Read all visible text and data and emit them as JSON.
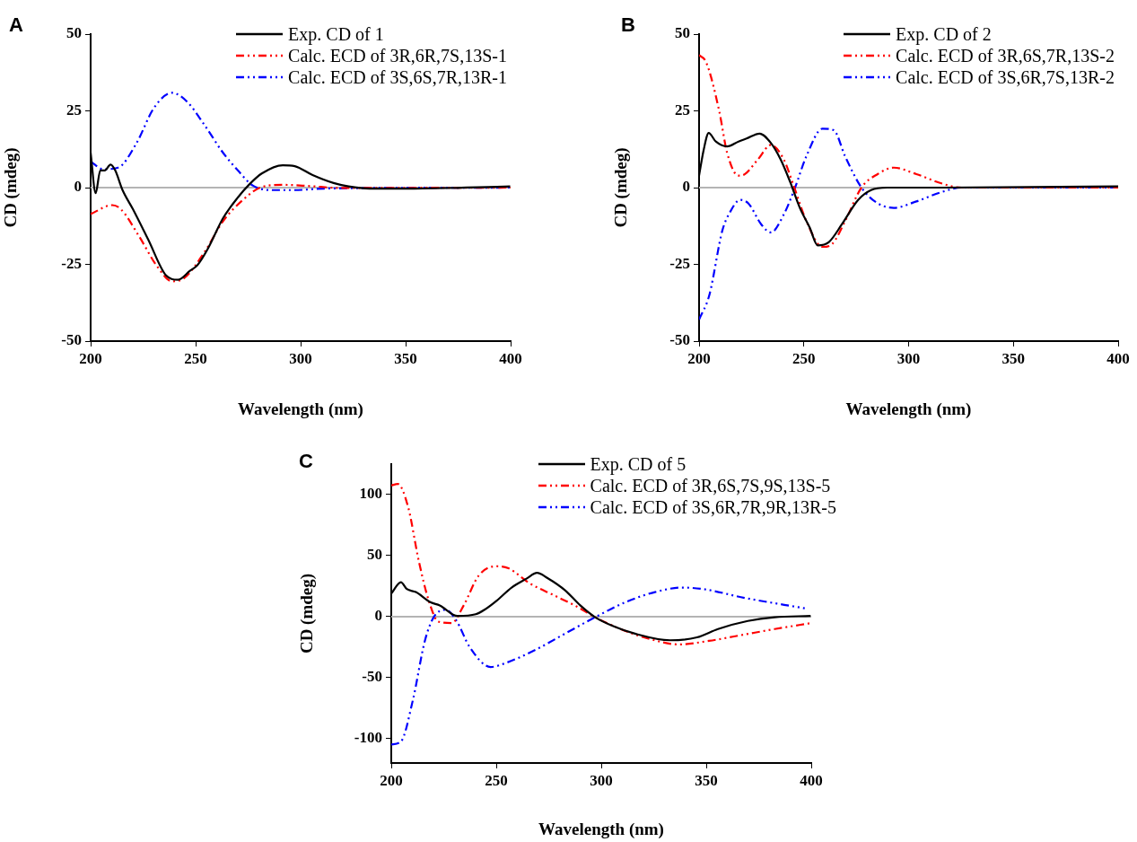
{
  "chart_data": [
    {
      "type": "line",
      "xlabel": "Wavelength (nm)",
      "ylabel": "CD (mdeg)",
      "annotations": [
        "A"
      ],
      "xlim": [
        200,
        400
      ],
      "xticks": [
        200,
        250,
        300,
        350,
        400
      ],
      "ylim": [
        -50,
        50
      ],
      "yticks": [
        -50,
        -25,
        0,
        25,
        50
      ],
      "legend": "top right",
      "ref_lines": [
        {
          "axis": "y",
          "value": 0,
          "color": "#b4b4b4"
        }
      ],
      "series": [
        {
          "name": "Exp. CD of 1",
          "color": "#000000",
          "line_style": "solid",
          "x": [
            200,
            202.4,
            204.6,
            206.7,
            209.5,
            211.7,
            215.2,
            220.2,
            227.4,
            235.9,
            241.6,
            247.3,
            250.9,
            255.9,
            263,
            270.1,
            275.8,
            281.5,
            291.5,
            297.2,
            305.7,
            315.7,
            322.8,
            332.8,
            354.2,
            399.8
          ],
          "values": [
            11.4,
            -1.8,
            5.6,
            5.6,
            7.5,
            5.6,
            -0.8,
            -7.1,
            -16.9,
            -28.6,
            -30,
            -27.1,
            -25.2,
            -19.8,
            -10,
            -3.2,
            1.2,
            4.6,
            7.3,
            7,
            4.1,
            1.5,
            0.4,
            -0.3,
            -0.3,
            0.4
          ]
        },
        {
          "name": "Calc. ECD of 3R,6R,7S,13S-1",
          "color": "#ff0000",
          "line_style": "dashed",
          "x": [
            200,
            210.3,
            214.5,
            223.1,
            231.6,
            238.8,
            244.5,
            254.4,
            263,
            273,
            281.5,
            291.5,
            304.3,
            318.6,
            400
          ],
          "values": [
            -8.6,
            -5.7,
            -7.1,
            -15.9,
            -25.6,
            -30.5,
            -29.5,
            -20.8,
            -11,
            -3.7,
            0.2,
            0.9,
            0.5,
            -0.1,
            0
          ]
        },
        {
          "name": "Calc. ECD of 3S,6S,7R,13R-1",
          "color": "#0000ff",
          "line_style": "dashed",
          "x": [
            200,
            206,
            213.1,
            221.7,
            230.2,
            238.8,
            245.9,
            254.4,
            263,
            270.1,
            277.2,
            285.8,
            297.2,
            311.4,
            400
          ],
          "values": [
            8.5,
            6,
            6.5,
            14.3,
            26,
            30.9,
            28,
            20.2,
            11.4,
            5.6,
            0.7,
            -0.8,
            -0.8,
            -0.3,
            0
          ]
        }
      ]
    },
    {
      "type": "line",
      "xlabel": "Wavelength (nm)",
      "ylabel": "CD (mdeg)",
      "annotations": [
        "B"
      ],
      "xlim": [
        200,
        400
      ],
      "xticks": [
        200,
        250,
        300,
        350,
        400
      ],
      "ylim": [
        -50,
        50
      ],
      "yticks": [
        -50,
        -25,
        0,
        25,
        50
      ],
      "legend": "top right",
      "ref_lines": [
        {
          "axis": "y",
          "value": 0,
          "color": "#b4b4b4"
        }
      ],
      "series": [
        {
          "name": "Exp. CD of 2",
          "color": "#000000",
          "line_style": "solid",
          "x": [
            200,
            202.2,
            204.6,
            208,
            213.4,
            218.8,
            222.7,
            228.9,
            234.3,
            238.9,
            243.5,
            248.1,
            252.8,
            256.6,
            262,
            268.2,
            275.9,
            282.1,
            289.8,
            316,
            400
          ],
          "values": [
            3.9,
            12.3,
            17.8,
            15,
            13.4,
            15,
            16,
            17.6,
            14.5,
            9.2,
            1.8,
            -6.6,
            -13,
            -18.8,
            -17.7,
            -11.9,
            -4,
            -0.8,
            0,
            0,
            0.4
          ]
        },
        {
          "name": "Calc. ECD of 3R,6S,7R,13S-2",
          "color": "#ff0000",
          "line_style": "dashed",
          "x": [
            200,
            203.4,
            209.6,
            213.4,
            218.8,
            221.9,
            228.1,
            234.3,
            240.4,
            245.1,
            251.2,
            258.9,
            263.6,
            269.7,
            277.5,
            285.2,
            292.9,
            303.7,
            316,
            325.3,
            400
          ],
          "values": [
            43.2,
            40.8,
            25,
            11.3,
            3.9,
            4.4,
            9.2,
            13.9,
            9.2,
            0.7,
            -10.9,
            -19.3,
            -18.3,
            -10.9,
            0,
            4.4,
            6.5,
            4.4,
            1.3,
            0,
            0
          ]
        },
        {
          "name": "Calc. ECD of 3S,6R,7S,13R-2",
          "color": "#0000ff",
          "line_style": "dashed",
          "x": [
            200,
            204.9,
            211.1,
            215,
            219.6,
            223.5,
            229.6,
            234.3,
            240.4,
            245.8,
            251.2,
            258.9,
            264.3,
            269.7,
            277.5,
            285.2,
            292.9,
            303.7,
            316,
            325.3,
            400
          ],
          "values": [
            -43,
            -35,
            -14,
            -7.7,
            -4,
            -5.1,
            -11.9,
            -14.6,
            -8.8,
            0,
            10.2,
            19.2,
            18.7,
            10.2,
            0,
            -5.1,
            -6.6,
            -4.5,
            -1.4,
            0,
            0
          ]
        }
      ]
    },
    {
      "type": "line",
      "xlabel": "Wavelength (nm)",
      "ylabel": "CD (mdeg)",
      "annotations": [
        "C"
      ],
      "xlim": [
        200,
        400
      ],
      "xticks": [
        200,
        250,
        300,
        350,
        400
      ],
      "ylim": [
        -120,
        125
      ],
      "yticks": [
        -100,
        -50,
        0,
        50,
        100
      ],
      "legend": "top right",
      "ref_lines": [
        {
          "axis": "y",
          "value": 0,
          "color": "#b4b4b4"
        }
      ],
      "series": [
        {
          "name": "Exp. CD of 5",
          "color": "#000000",
          "line_style": "solid",
          "x": [
            200,
            204.6,
            207.4,
            211.7,
            218.8,
            223.1,
            231.6,
            240.2,
            244.4,
            250.1,
            257.3,
            264.4,
            269.4,
            274.4,
            282.9,
            290,
            297.1,
            305.7,
            315.7,
            332.8,
            345.6,
            355.6,
            369.8,
            382.6,
            399.7
          ],
          "values": [
            18.9,
            28.2,
            22.6,
            20.1,
            11.7,
            9.2,
            0.5,
            1.9,
            5.6,
            12.9,
            23.8,
            31.1,
            35.9,
            31.6,
            21.4,
            9.2,
            -0.5,
            -7.8,
            -13.8,
            -19.4,
            -17,
            -10.2,
            -3.6,
            -0.5,
            0.5
          ]
        },
        {
          "name": "Calc. ECD of 3R,6S,7S,9S,13S-5",
          "color": "#ff0000",
          "line_style": "dashed",
          "x": [
            200,
            203.1,
            208.1,
            213.1,
            218.1,
            222.4,
            228.8,
            234.5,
            241.6,
            250.1,
            255.8,
            265.8,
            277.2,
            288.6,
            297.1,
            308.5,
            321.4,
            337,
            351.3,
            368.4,
            382.6,
            400
          ],
          "values": [
            107.5,
            108.7,
            89.3,
            45.6,
            11.7,
            -4.1,
            -5.3,
            9.2,
            33.5,
            41.3,
            39.6,
            27.4,
            17.7,
            8,
            -0.5,
            -9.7,
            -17.5,
            -22.8,
            -19.9,
            -14.6,
            -10.2,
            -5.3
          ]
        },
        {
          "name": "Calc. ECD of 3S,6R,7R,9R,13R-5",
          "color": "#0000ff",
          "line_style": "dashed",
          "x": [
            200,
            204.6,
            210.3,
            216,
            220.2,
            225.9,
            230.9,
            237.3,
            247.3,
            254.4,
            268.7,
            282.9,
            297.1,
            311.4,
            325.6,
            338.4,
            348.4,
            368.4,
            396.9
          ],
          "values": [
            -104.8,
            -102.4,
            -68.4,
            -19.9,
            -0.5,
            5.6,
            -2.9,
            -24.8,
            -41.3,
            -38.1,
            -27.2,
            -13.8,
            -0.5,
            11.7,
            20.1,
            23.8,
            22.6,
            15.3,
            6.8
          ]
        }
      ]
    }
  ]
}
